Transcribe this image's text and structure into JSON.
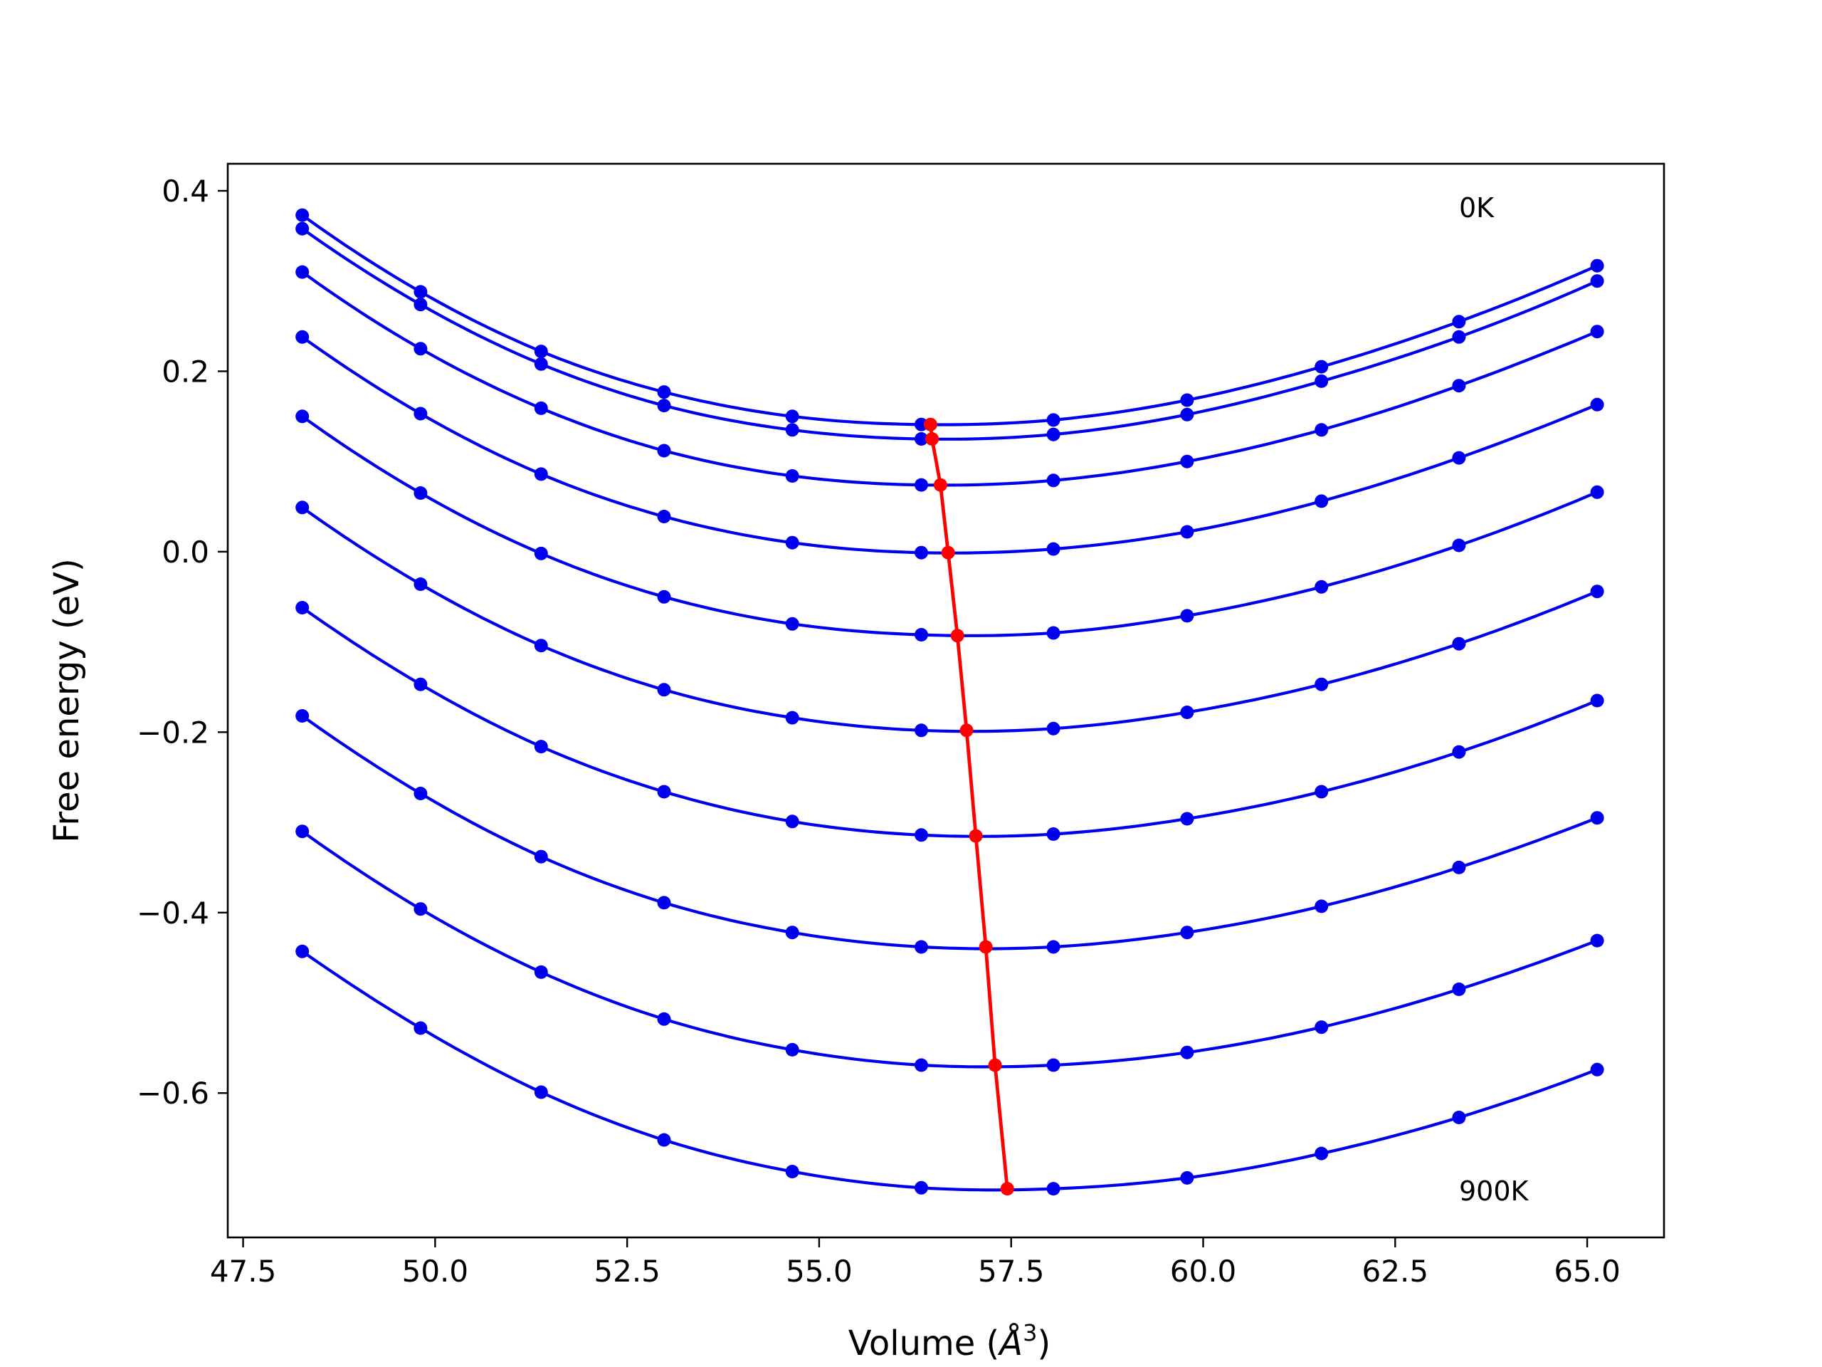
{
  "chart_data": {
    "type": "line",
    "xlabel": "Volume (",
    "xlabel_unit": "Å",
    "xlabel_exp": "3",
    "xlabel_close": ")",
    "ylabel": "Free energy (eV)",
    "xlim": [
      47.3,
      66.0
    ],
    "ylim": [
      -0.76,
      0.43
    ],
    "xticks": [
      47.5,
      50.0,
      52.5,
      55.0,
      57.5,
      60.0,
      62.5,
      65.0
    ],
    "xtick_labels": [
      "47.5",
      "50.0",
      "52.5",
      "55.0",
      "57.5",
      "60.0",
      "62.5",
      "65.0"
    ],
    "yticks": [
      0.4,
      0.2,
      0.0,
      -0.2,
      -0.4,
      -0.6
    ],
    "ytick_labels": [
      "0.4",
      "0.2",
      "0.0",
      "−0.2",
      "−0.4",
      "−0.6"
    ],
    "grid": false,
    "annotations": [
      {
        "text": "0K",
        "x": 63.35,
        "y": 0.375
      },
      {
        "text": "900K",
        "x": 63.35,
        "y": -0.718
      }
    ],
    "x": [
      48.27,
      49.81,
      51.38,
      52.98,
      54.65,
      56.33,
      58.05,
      59.79,
      61.54,
      63.33,
      65.13
    ],
    "series": [
      {
        "color": "#0000ee",
        "values": [
          0.373,
          0.288,
          0.222,
          0.177,
          0.15,
          0.141,
          0.146,
          0.168,
          0.205,
          0.255,
          0.317
        ]
      },
      {
        "color": "#0000ee",
        "values": [
          0.358,
          0.274,
          0.208,
          0.162,
          0.135,
          0.125,
          0.13,
          0.152,
          0.189,
          0.238,
          0.3
        ]
      },
      {
        "color": "#0000ee",
        "values": [
          0.31,
          0.225,
          0.159,
          0.112,
          0.084,
          0.074,
          0.079,
          0.1,
          0.135,
          0.184,
          0.244
        ]
      },
      {
        "color": "#0000ee",
        "values": [
          0.238,
          0.153,
          0.086,
          0.039,
          0.01,
          -0.001,
          0.003,
          0.022,
          0.056,
          0.104,
          0.163
        ]
      },
      {
        "color": "#0000ee",
        "values": [
          0.15,
          0.065,
          -0.002,
          -0.05,
          -0.08,
          -0.092,
          -0.09,
          -0.071,
          -0.039,
          0.007,
          0.066
        ]
      },
      {
        "color": "#0000ee",
        "values": [
          0.049,
          -0.036,
          -0.104,
          -0.153,
          -0.184,
          -0.198,
          -0.196,
          -0.178,
          -0.147,
          -0.102,
          -0.044
        ]
      },
      {
        "color": "#0000ee",
        "values": [
          -0.062,
          -0.147,
          -0.216,
          -0.266,
          -0.299,
          -0.314,
          -0.313,
          -0.296,
          -0.266,
          -0.222,
          -0.165
        ]
      },
      {
        "color": "#0000ee",
        "values": [
          -0.182,
          -0.268,
          -0.338,
          -0.389,
          -0.422,
          -0.438,
          -0.438,
          -0.422,
          -0.393,
          -0.35,
          -0.295
        ]
      },
      {
        "color": "#0000ee",
        "values": [
          -0.31,
          -0.396,
          -0.466,
          -0.518,
          -0.552,
          -0.569,
          -0.569,
          -0.555,
          -0.527,
          -0.485,
          -0.431
        ]
      },
      {
        "color": "#0000ee",
        "values": [
          -0.443,
          -0.528,
          -0.599,
          -0.652,
          -0.687,
          -0.705,
          -0.706,
          -0.694,
          -0.667,
          -0.627,
          -0.574
        ]
      }
    ],
    "minima": {
      "color": "#ff0000",
      "x": [
        56.45,
        56.47,
        56.58,
        56.68,
        56.8,
        56.92,
        57.04,
        57.17,
        57.29,
        57.45
      ],
      "y": [
        0.141,
        0.125,
        0.074,
        -0.001,
        -0.093,
        -0.198,
        -0.315,
        -0.438,
        -0.569,
        -0.706
      ]
    }
  }
}
